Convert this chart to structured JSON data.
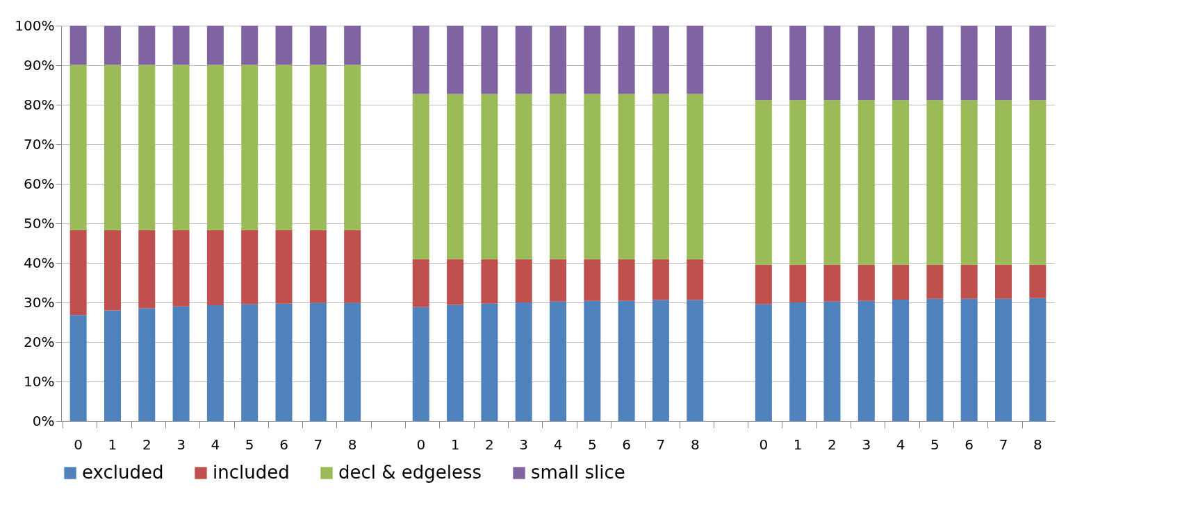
{
  "chart_data": {
    "type": "bar",
    "stacked": true,
    "categories": [
      "0",
      "1",
      "2",
      "3",
      "4",
      "5",
      "6",
      "7",
      "8",
      null,
      "0",
      "1",
      "2",
      "3",
      "4",
      "5",
      "6",
      "7",
      "8",
      null,
      "0",
      "1",
      "2",
      "3",
      "4",
      "5",
      "6",
      "7",
      "8"
    ],
    "series": [
      {
        "name": "excluded",
        "color": "#4f81bd",
        "values": [
          26.8,
          28.0,
          28.5,
          29.0,
          29.3,
          29.5,
          29.7,
          29.9,
          29.9,
          null,
          28.8,
          29.4,
          29.7,
          30.0,
          30.2,
          30.4,
          30.4,
          30.6,
          30.6,
          null,
          29.5,
          30.0,
          30.2,
          30.4,
          30.7,
          30.9,
          30.9,
          30.9,
          31.1
        ]
      },
      {
        "name": "included",
        "color": "#c0504d",
        "values": [
          21.5,
          20.3,
          19.8,
          19.3,
          19.0,
          18.8,
          18.6,
          18.4,
          18.4,
          null,
          12.1,
          11.5,
          11.2,
          10.9,
          10.7,
          10.5,
          10.5,
          10.3,
          10.3,
          null,
          10.0,
          9.5,
          9.3,
          9.1,
          8.8,
          8.6,
          8.6,
          8.6,
          8.4
        ]
      },
      {
        "name": "decl & edgeless",
        "color": "#9bbb59",
        "values": [
          41.8,
          41.8,
          41.8,
          41.8,
          41.8,
          41.8,
          41.8,
          41.8,
          41.8,
          null,
          41.8,
          41.8,
          41.8,
          41.8,
          41.8,
          41.8,
          41.8,
          41.8,
          41.8,
          null,
          41.7,
          41.7,
          41.7,
          41.7,
          41.7,
          41.7,
          41.7,
          41.7,
          41.7
        ]
      },
      {
        "name": "small slice",
        "color": "#8064a2",
        "values": [
          9.9,
          9.9,
          9.9,
          9.9,
          9.9,
          9.9,
          9.9,
          9.9,
          9.9,
          null,
          17.3,
          17.3,
          17.3,
          17.3,
          17.3,
          17.3,
          17.3,
          17.3,
          17.3,
          null,
          18.8,
          18.8,
          18.8,
          18.8,
          18.8,
          18.8,
          18.8,
          18.8,
          18.8
        ]
      }
    ],
    "ylim": [
      0,
      100
    ],
    "yticks": [
      {
        "value": 0,
        "label": "0%"
      },
      {
        "value": 10,
        "label": "10%"
      },
      {
        "value": 20,
        "label": "20%"
      },
      {
        "value": 30,
        "label": "30%"
      },
      {
        "value": 40,
        "label": "40%"
      },
      {
        "value": 50,
        "label": "50%"
      },
      {
        "value": 60,
        "label": "60%"
      },
      {
        "value": 70,
        "label": "70%"
      },
      {
        "value": 80,
        "label": "80%"
      },
      {
        "value": 90,
        "label": "90%"
      },
      {
        "value": 100,
        "label": "100%"
      }
    ],
    "grid": "y",
    "legend": "bottom"
  }
}
